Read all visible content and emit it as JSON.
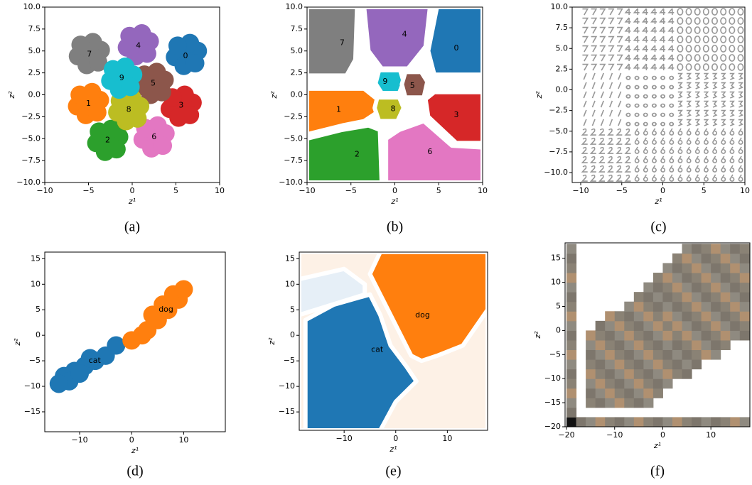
{
  "chart_data": [
    {
      "type": "scatter",
      "caption": "(a)",
      "xlabel": "z¹",
      "ylabel": "z²",
      "xlim": [
        -10,
        10
      ],
      "ylim": [
        -10,
        10
      ],
      "xticks": [
        {
          "value": -10,
          "label": "−10"
        },
        {
          "value": -5,
          "label": "−5"
        },
        0,
        5,
        10
      ],
      "yticks": [
        {
          "value": 10,
          "label": "10.0"
        },
        7.5,
        {
          "value": 5,
          "label": "5.0"
        },
        2.5,
        {
          "value": 0,
          "label": "0.0"
        },
        {
          "value": -2.5,
          "label": "−2.5"
        },
        {
          "value": -5,
          "label": "−5.0"
        },
        {
          "value": -7.5,
          "label": "−7.5"
        },
        {
          "value": -10,
          "label": "−10.0"
        }
      ],
      "series": [
        {
          "color": "#1f77b4",
          "x": [
            6.2,
            7.5,
            4.9,
            6.6,
            5.9,
            7.2,
            5.2
          ],
          "y": [
            4.6,
            5.0,
            4.3,
            5.9,
            3.3,
            3.6,
            5.6
          ]
        },
        {
          "color": "#ff7f0e",
          "x": [
            -5,
            -3.7,
            -6.3,
            -4.6,
            -5.3,
            -4,
            -6
          ],
          "y": [
            -1,
            -0.6,
            -1.3,
            0.3,
            -2.3,
            -2,
            0
          ]
        },
        {
          "color": "#2ca02c",
          "x": [
            -2.8,
            -1.5,
            -4.1,
            -2.4,
            -3.1,
            -1.8,
            -3.8
          ],
          "y": [
            -5.2,
            -4.8,
            -5.5,
            -3.9,
            -6.5,
            -6.2,
            -4.2
          ]
        },
        {
          "color": "#d62728",
          "x": [
            5.6,
            6.9,
            4.3,
            6,
            5.3,
            6.6,
            4.6
          ],
          "y": [
            -1.3,
            -0.9,
            -1.6,
            0,
            -2.6,
            -2.3,
            -0.3
          ]
        },
        {
          "color": "#9467bd",
          "x": [
            0.7,
            2,
            -0.6,
            1.1,
            0.4,
            1.7,
            -0.3
          ],
          "y": [
            5.7,
            6.1,
            5.4,
            7,
            4.4,
            4.7,
            6.7
          ]
        },
        {
          "color": "#8c564b",
          "x": [
            2.4,
            3.7,
            1.1,
            2.8,
            2.1,
            3.4,
            1.4
          ],
          "y": [
            1.3,
            1.7,
            1,
            2.6,
            0,
            0.3,
            2.3
          ]
        },
        {
          "color": "#e377c2",
          "x": [
            2.5,
            3.8,
            1.2,
            2.9,
            2.2,
            3.5,
            1.5
          ],
          "y": [
            -4.8,
            -4.4,
            -5.1,
            -3.5,
            -6.1,
            -5.8,
            -3.8
          ]
        },
        {
          "color": "#7f7f7f",
          "x": [
            -4.9,
            -3.6,
            -6.2,
            -4.5,
            -5.2,
            -3.9,
            -5.9
          ],
          "y": [
            4.7,
            5.1,
            4.4,
            6,
            3.4,
            3.7,
            5.7
          ]
        },
        {
          "color": "#bcbd22",
          "x": [
            -0.4,
            0.9,
            -1.7,
            0,
            -0.7,
            0.6,
            -1.4
          ],
          "y": [
            -1.7,
            -1.3,
            -2,
            -0.4,
            -3,
            -2.7,
            -0.7
          ]
        },
        {
          "color": "#17becf",
          "x": [
            -1.2,
            0.1,
            -2.5,
            -0.8,
            -1.5,
            -0.2,
            -2.2
          ],
          "y": [
            1.9,
            2.3,
            1.6,
            3.2,
            0.6,
            0.9,
            2.9
          ]
        }
      ],
      "labels": [
        {
          "text": "0",
          "x": 6.1,
          "y": 4.4
        },
        {
          "text": "1",
          "x": -5,
          "y": -1
        },
        {
          "text": "2",
          "x": -2.8,
          "y": -5.2
        },
        {
          "text": "3",
          "x": 5.6,
          "y": -1.2
        },
        {
          "text": "4",
          "x": 0.7,
          "y": 5.6
        },
        {
          "text": "5",
          "x": 2.4,
          "y": 1.3
        },
        {
          "text": "6",
          "x": 2.5,
          "y": -4.8
        },
        {
          "text": "7",
          "x": -4.9,
          "y": 4.6
        },
        {
          "text": "8",
          "x": -0.4,
          "y": -1.7
        },
        {
          "text": "9",
          "x": -1.2,
          "y": 1.9
        }
      ]
    },
    {
      "type": "regions",
      "caption": "(b)",
      "xlabel": "z¹",
      "ylabel": "z²",
      "xlim": [
        -10,
        10
      ],
      "ylim": [
        -10,
        10
      ],
      "xticks": [
        {
          "value": -10,
          "label": "−10"
        },
        {
          "value": -5,
          "label": "−5"
        },
        0,
        5,
        10
      ],
      "yticks": [
        {
          "value": 10,
          "label": "10.0"
        },
        7.5,
        {
          "value": 5,
          "label": "5.0"
        },
        2.5,
        {
          "value": 0,
          "label": "0.0"
        },
        {
          "value": -2.5,
          "label": "−2.5"
        },
        {
          "value": -5,
          "label": "−5.0"
        },
        {
          "value": -7.5,
          "label": "−7.5"
        },
        {
          "value": -10,
          "label": "−10.0"
        }
      ],
      "regions": [
        {
          "color": "#7f7f7f",
          "x": [
            -10,
            -4.3,
            -4.5,
            -5.5,
            -10
          ],
          "y": [
            10,
            10,
            4,
            2.2,
            2.2
          ]
        },
        {
          "color": "#9467bd",
          "x": [
            -3.5,
            4,
            3.5,
            1.5,
            -1.5,
            -3
          ],
          "y": [
            10,
            10,
            5.5,
            3,
            3,
            5
          ]
        },
        {
          "color": "#1f77b4",
          "x": [
            4.8,
            10,
            10,
            4.5,
            3.8
          ],
          "y": [
            10,
            10,
            2.3,
            2.3,
            5
          ]
        },
        {
          "color": "#17becf",
          "x": [
            -1.8,
            0.6,
            1,
            0.5,
            -1.5,
            -2.2
          ],
          "y": [
            2.8,
            2.8,
            1.5,
            0.2,
            0.2,
            1.3
          ]
        },
        {
          "color": "#8c564b",
          "x": [
            1.2,
            3,
            3.7,
            3.3,
            1.2,
            0.8
          ],
          "y": [
            2.6,
            2.6,
            1.5,
            -0.3,
            -0.3,
            1.2
          ]
        },
        {
          "color": "#ff7f0e",
          "x": [
            -10,
            -3.5,
            -2,
            -2,
            -3.5,
            -6,
            -10
          ],
          "y": [
            0.7,
            0.7,
            -0.5,
            -2,
            -3,
            -3.5,
            -4.5
          ]
        },
        {
          "color": "#bcbd22",
          "x": [
            -2,
            0.5,
            1,
            0.3,
            -1.8,
            -2.3
          ],
          "y": [
            -0.3,
            -0.3,
            -1.5,
            -3,
            -3,
            -1.5
          ]
        },
        {
          "color": "#d62728",
          "x": [
            4.5,
            10,
            10,
            7,
            3.8,
            3.5
          ],
          "y": [
            0.3,
            0.3,
            -5.5,
            -5.5,
            -2.5,
            -0.5
          ]
        },
        {
          "color": "#2ca02c",
          "x": [
            -10,
            -6,
            -3,
            -1.7,
            -1.5,
            -10
          ],
          "y": [
            -5,
            -4,
            -3.5,
            -4,
            -10,
            -10
          ]
        },
        {
          "color": "#e377c2",
          "x": [
            0.5,
            3.3,
            6.5,
            10,
            10,
            -1,
            -1
          ],
          "y": [
            -4,
            -3,
            -5.8,
            -6,
            -10,
            -10,
            -5
          ]
        }
      ],
      "labels": [
        {
          "text": "7",
          "x": -6,
          "y": 5.9
        },
        {
          "text": "4",
          "x": 1.1,
          "y": 6.9
        },
        {
          "text": "0",
          "x": 7,
          "y": 5.3
        },
        {
          "text": "9",
          "x": -1.1,
          "y": 1.5
        },
        {
          "text": "5",
          "x": 2,
          "y": 1
        },
        {
          "text": "1",
          "x": -6.4,
          "y": -1.7
        },
        {
          "text": "8",
          "x": -0.2,
          "y": -1.6
        },
        {
          "text": "3",
          "x": 7,
          "y": -2.3
        },
        {
          "text": "2",
          "x": -4.3,
          "y": -6.8
        },
        {
          "text": "6",
          "x": 4,
          "y": -6.5
        }
      ]
    },
    {
      "type": "image",
      "caption": "(c)",
      "xlabel": "z¹",
      "ylabel": "z²",
      "xlim": [
        -11.04,
        10
      ],
      "ylim": [
        -11.2,
        10
      ],
      "xticks": [
        {
          "value": -10,
          "label": "−10"
        },
        {
          "value": -5,
          "label": "−5"
        },
        0,
        5,
        10
      ],
      "yticks": [
        {
          "value": 10,
          "label": "10.0"
        },
        7.5,
        {
          "value": 5,
          "label": "5.0"
        },
        2.5,
        {
          "value": 0,
          "label": "0.0"
        },
        {
          "value": -2.5,
          "label": "−2.5"
        },
        {
          "value": -5,
          "label": "−5.0"
        },
        {
          "value": -7.5,
          "label": "−7.5"
        },
        {
          "value": -10,
          "label": "−10.0"
        }
      ]
    },
    {
      "type": "scatter",
      "caption": "(d)",
      "xlabel": "z¹",
      "ylabel": "z²",
      "xlim": [
        -16.7,
        18
      ],
      "ylim": [
        -18.9,
        16.3
      ],
      "xticks": [
        {
          "value": -10,
          "label": "−10"
        },
        0,
        10
      ],
      "yticks": [
        15,
        10,
        5,
        0,
        {
          "value": -5,
          "label": "−5"
        },
        {
          "value": -10,
          "label": "−10"
        },
        {
          "value": -15,
          "label": "−15"
        }
      ],
      "series": [
        {
          "color": "#1f77b4",
          "x": [
            -13,
            -11,
            -9,
            -7,
            -5,
            -12,
            -8,
            -10,
            -14,
            -3
          ],
          "y": [
            -8,
            -7,
            -6,
            -5,
            -4,
            -9,
            -4.5,
            -7.5,
            -9.5,
            -2
          ]
        },
        {
          "color": "#ff7f0e",
          "x": [
            3,
            5,
            7,
            9,
            6,
            8,
            4,
            10,
            2,
            0
          ],
          "y": [
            1,
            3,
            5,
            7,
            6,
            8,
            4,
            9,
            0,
            -1
          ]
        }
      ],
      "labels": [
        {
          "text": "cat",
          "x": -7.1,
          "y": -5
        },
        {
          "text": "dog",
          "x": 6.6,
          "y": 5
        }
      ]
    },
    {
      "type": "regions",
      "caption": "(e)",
      "xlabel": "z¹",
      "ylabel": "z²",
      "xlim": [
        -18.7,
        17.8
      ],
      "ylim": [
        -18.6,
        16.3
      ],
      "xticks": [
        {
          "value": -10,
          "label": "−10"
        },
        0,
        10
      ],
      "yticks": [
        15,
        10,
        5,
        0,
        {
          "value": -5,
          "label": "−5"
        },
        {
          "value": -10,
          "label": "−10"
        },
        {
          "value": -15,
          "label": "−15"
        }
      ],
      "regions": [
        {
          "color": "#fdf1e6",
          "x": [
            -18.7,
            17.8,
            17.8,
            -18.7
          ],
          "y": [
            -18.6,
            -18.6,
            16.3,
            16.3
          ]
        },
        {
          "color": "#e6eff7",
          "x": [
            -18.7,
            -10,
            -6,
            -6,
            -18.7
          ],
          "y": [
            11,
            13,
            10,
            8,
            4
          ]
        },
        {
          "color": "#1f77b4",
          "x": [
            -17.5,
            -12,
            -5,
            -3,
            -1,
            2,
            4,
            0,
            -3,
            -17.5
          ],
          "y": [
            3,
            6,
            8,
            4,
            -2,
            -6,
            -9,
            -13,
            -18.6,
            -18.6
          ]
        },
        {
          "color": "#ff7f0e",
          "x": [
            -5,
            -3,
            17.8,
            17.8,
            13,
            8,
            5,
            3,
            1,
            -1.5
          ],
          "y": [
            12,
            16.3,
            16.3,
            5,
            -2,
            -4,
            -5,
            -4,
            0,
            5
          ]
        }
      ],
      "labels": [
        {
          "text": "dog",
          "x": 5.2,
          "y": 3.9
        },
        {
          "text": "cat",
          "x": -3.6,
          "y": -2.8
        }
      ]
    },
    {
      "type": "image",
      "caption": "(f)",
      "xlabel": "z¹",
      "ylabel": "z²",
      "xlim": [
        -20.3,
        18.1
      ],
      "ylim": [
        -20,
        18.2
      ],
      "xticks": [
        {
          "value": -20,
          "label": "−20"
        },
        {
          "value": -10,
          "label": "−10"
        },
        0,
        10
      ],
      "yticks": [
        15,
        10,
        5,
        0,
        {
          "value": -5,
          "label": "−5"
        },
        {
          "value": -10,
          "label": "−10"
        },
        {
          "value": -15,
          "label": "−15"
        },
        {
          "value": -20,
          "label": "−20"
        }
      ]
    }
  ]
}
